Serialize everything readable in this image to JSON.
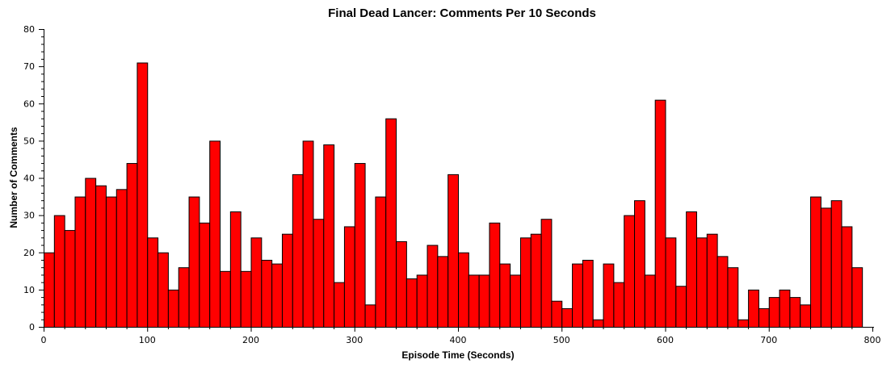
{
  "chart_data": {
    "type": "bar",
    "title": "Final Dead Lancer: Comments Per 10 Seconds",
    "xlabel": "Episode Time (Seconds)",
    "ylabel": "Number of Comments",
    "xlim": [
      0,
      800
    ],
    "ylim": [
      0,
      80
    ],
    "bin_width": 10,
    "x_ticks": [
      0,
      100,
      200,
      300,
      400,
      500,
      600,
      700,
      800
    ],
    "y_ticks": [
      0,
      10,
      20,
      30,
      40,
      50,
      60,
      70,
      80
    ],
    "grid": false,
    "bar_color": "#ff0000",
    "bar_edge_color": "#000000",
    "bins": [
      0,
      10,
      20,
      30,
      40,
      50,
      60,
      70,
      80,
      90,
      100,
      110,
      120,
      130,
      140,
      150,
      160,
      170,
      180,
      190,
      200,
      210,
      220,
      230,
      240,
      250,
      260,
      270,
      280,
      290,
      300,
      310,
      320,
      330,
      340,
      350,
      360,
      370,
      380,
      390,
      400,
      410,
      420,
      430,
      440,
      450,
      460,
      470,
      480,
      490,
      500,
      510,
      520,
      530,
      540,
      550,
      560,
      570,
      580,
      590,
      600,
      610,
      620,
      630,
      640,
      650,
      660,
      670,
      680,
      690,
      700,
      710,
      720,
      730,
      740,
      750,
      760,
      770,
      780,
      790
    ],
    "values": [
      20,
      30,
      26,
      35,
      40,
      38,
      35,
      37,
      44,
      71,
      24,
      20,
      10,
      16,
      35,
      28,
      50,
      15,
      31,
      15,
      24,
      18,
      17,
      25,
      41,
      50,
      29,
      49,
      12,
      27,
      44,
      6,
      35,
      56,
      23,
      13,
      14,
      22,
      19,
      41,
      20,
      14,
      14,
      28,
      17,
      14,
      24,
      25,
      29,
      7,
      5,
      17,
      18,
      2,
      17,
      12,
      30,
      34,
      14,
      61,
      24,
      11,
      31,
      24,
      25,
      19,
      16,
      2,
      10,
      5,
      8,
      10,
      8,
      6,
      35,
      32,
      34,
      27,
      16,
      0
    ]
  }
}
